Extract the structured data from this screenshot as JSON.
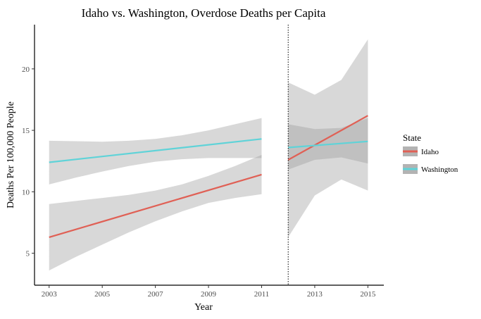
{
  "chart_data": {
    "type": "line",
    "title": "Idaho vs. Washington, Overdose Deaths per Capita",
    "xlabel": "Year",
    "ylabel": "Deaths Per 100,000 People",
    "xlim": [
      2002.45,
      2015.6
    ],
    "ylim": [
      2.4,
      23.6
    ],
    "x_ticks": [
      2003,
      2005,
      2007,
      2009,
      2011,
      2013,
      2015
    ],
    "y_ticks": [
      5,
      10,
      15,
      20
    ],
    "vline": {
      "x": 2012,
      "style": "dotted"
    },
    "legend": {
      "title": "State",
      "placement": "right"
    },
    "grid": false,
    "segments": [
      {
        "period": "pre",
        "series": [
          {
            "name": "Idaho",
            "color": "#e06055",
            "x": [
              2003,
              2011
            ],
            "y": [
              6.3,
              11.4
            ],
            "ci_x": [
              2003,
              2004,
              2005,
              2006,
              2007,
              2008,
              2009,
              2010,
              2011
            ],
            "ci_lower": [
              3.6,
              4.7,
              5.7,
              6.7,
              7.6,
              8.4,
              9.1,
              9.5,
              9.8
            ],
            "ci_upper": [
              9.0,
              9.25,
              9.5,
              9.75,
              10.1,
              10.6,
              11.3,
              12.1,
              13.0
            ]
          },
          {
            "name": "Washington",
            "color": "#5fd3d8",
            "x": [
              2003,
              2011
            ],
            "y": [
              12.4,
              14.3
            ],
            "ci_x": [
              2003,
              2004,
              2005,
              2006,
              2007,
              2008,
              2009,
              2010,
              2011
            ],
            "ci_lower": [
              10.6,
              11.15,
              11.65,
              12.1,
              12.45,
              12.65,
              12.75,
              12.75,
              12.75
            ],
            "ci_upper": [
              14.15,
              14.12,
              14.08,
              14.15,
              14.3,
              14.6,
              15.0,
              15.5,
              16.0
            ]
          }
        ]
      },
      {
        "period": "post",
        "series": [
          {
            "name": "Idaho",
            "color": "#e06055",
            "x": [
              2012,
              2015
            ],
            "y": [
              12.6,
              16.2
            ],
            "ci_x": [
              2012,
              2013,
              2014,
              2015
            ],
            "ci_lower": [
              6.3,
              9.7,
              11.0,
              10.1
            ],
            "ci_upper": [
              18.9,
              17.9,
              19.1,
              22.4
            ]
          },
          {
            "name": "Washington",
            "color": "#5fd3d8",
            "x": [
              2012,
              2015
            ],
            "y": [
              13.6,
              14.1
            ],
            "ci_x": [
              2012,
              2013,
              2014,
              2015
            ],
            "ci_lower": [
              11.8,
              12.6,
              12.8,
              12.3
            ],
            "ci_upper": [
              15.5,
              15.1,
              15.2,
              16.0
            ]
          }
        ]
      }
    ]
  }
}
